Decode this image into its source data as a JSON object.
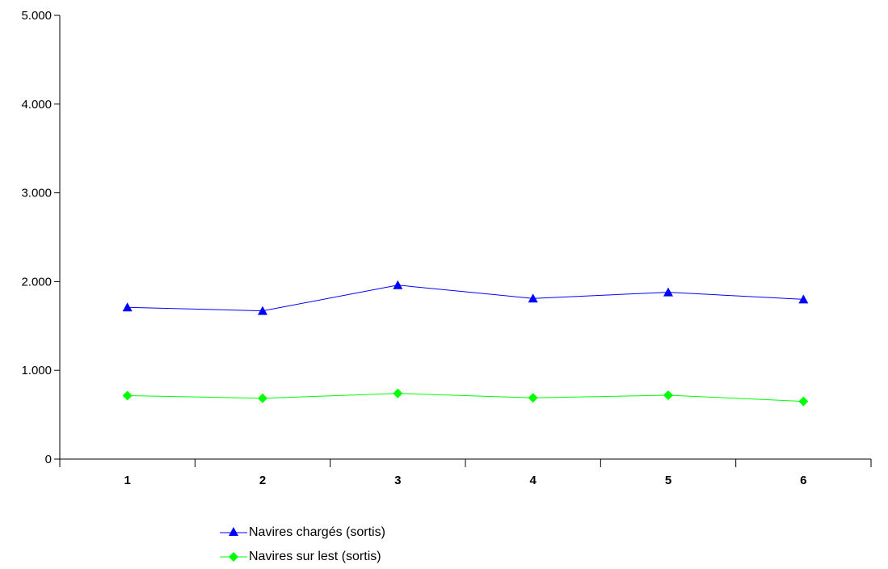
{
  "chart_data": {
    "type": "line",
    "categories": [
      "1",
      "2",
      "3",
      "4",
      "5",
      "6"
    ],
    "ylim": [
      0,
      5000
    ],
    "y_ticks": [
      0,
      1000,
      2000,
      3000,
      4000,
      5000
    ],
    "y_tick_labels": [
      "0",
      "1.000",
      "2.000",
      "3.000",
      "4.000",
      "5.000"
    ],
    "grid": false,
    "legend_position": "bottom",
    "series": [
      {
        "name": "Navires chargés (sortis)",
        "color": "#0000ff",
        "marker": "triangle",
        "values": [
          1710,
          1670,
          1960,
          1810,
          1880,
          1800
        ]
      },
      {
        "name": "Navires sur lest (sortis)",
        "color": "#00ff00",
        "marker": "diamond",
        "values": [
          715,
          685,
          740,
          690,
          720,
          650
        ]
      }
    ]
  }
}
